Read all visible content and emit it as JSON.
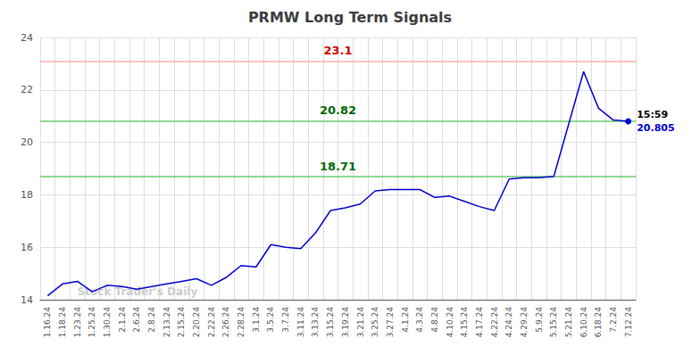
{
  "chart_data": {
    "type": "line",
    "title": "PRMW Long Term Signals",
    "categories": [
      "1.16.24",
      "1.18.24",
      "1.23.24",
      "1.25.24",
      "1.30.24",
      "2.1.24",
      "2.6.24",
      "2.8.24",
      "2.13.24",
      "2.15.24",
      "2.20.24",
      "2.22.24",
      "2.26.24",
      "2.28.24",
      "3.1.24",
      "3.5.24",
      "3.7.24",
      "3.11.24",
      "3.13.24",
      "3.15.24",
      "3.19.24",
      "3.21.24",
      "3.25.24",
      "3.27.24",
      "4.1.24",
      "4.3.24",
      "4.8.24",
      "4.10.24",
      "4.15.24",
      "4.17.24",
      "4.22.24",
      "4.24.24",
      "4.29.24",
      "5.9.24",
      "5.15.24",
      "5.21.24",
      "6.10.24",
      "6.18.24",
      "7.2.24",
      "7.12.24"
    ],
    "values": [
      14.15,
      14.6,
      14.7,
      14.3,
      14.55,
      14.5,
      14.4,
      14.5,
      14.6,
      14.7,
      14.8,
      14.55,
      14.85,
      15.3,
      15.25,
      16.1,
      16.0,
      15.95,
      16.55,
      17.4,
      17.5,
      17.65,
      18.15,
      18.2,
      18.2,
      18.2,
      17.9,
      17.95,
      17.75,
      17.55,
      17.4,
      18.6,
      18.65,
      18.65,
      18.7,
      20.7,
      22.7,
      21.3,
      20.85,
      20.805
    ],
    "color": "#0000cc",
    "ylim": [
      14,
      24
    ],
    "yticks": [
      14,
      16,
      18,
      20,
      22,
      24
    ],
    "grid": true,
    "hlines": [
      {
        "value": 23.1,
        "label": "23.1",
        "color": "#ffaaaa",
        "label_color": "#cc0000"
      },
      {
        "value": 20.82,
        "label": "20.82",
        "color": "#66cc66",
        "label_color": "#006600"
      },
      {
        "value": 18.71,
        "label": "18.71",
        "color": "#66cc66",
        "label_color": "#006600"
      }
    ],
    "last_point_labels": {
      "time": "15:59",
      "time_color": "#000000",
      "value": "20.805"
    },
    "watermark": {
      "text": "Stock Trader's Daily",
      "color": "#cccccc",
      "x": "1.23.24",
      "y": 14.3
    }
  }
}
